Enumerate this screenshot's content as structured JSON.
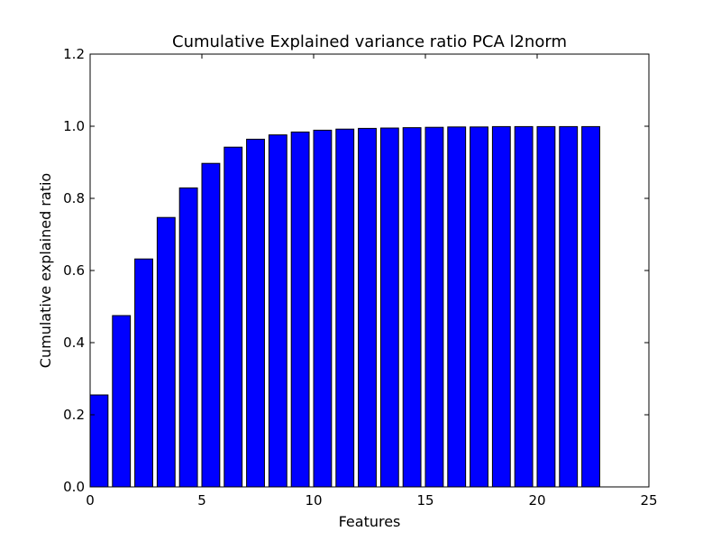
{
  "chart_data": {
    "type": "bar",
    "title": "Cumulative Explained variance ratio PCA l2norm",
    "xlabel": "Features",
    "ylabel": "Cumulative explained ratio",
    "xlim": [
      0,
      25
    ],
    "ylim": [
      0,
      1.2
    ],
    "xticks": [
      0,
      5,
      10,
      15,
      20,
      25
    ],
    "yticks": [
      0.0,
      0.2,
      0.4,
      0.6,
      0.8,
      1.0,
      1.2
    ],
    "xtick_labels": [
      "0",
      "5",
      "10",
      "15",
      "20",
      "25"
    ],
    "ytick_labels": [
      "0.0",
      "0.2",
      "0.4",
      "0.6",
      "0.8",
      "1.0",
      "1.2"
    ],
    "bar_color": "#0000ff",
    "bar_width": 0.8,
    "grid": false,
    "x": [
      0,
      1,
      2,
      3,
      4,
      5,
      6,
      7,
      8,
      9,
      10,
      11,
      12,
      13,
      14,
      15,
      16,
      17,
      18,
      19,
      20,
      21,
      22
    ],
    "values": [
      0.255,
      0.475,
      0.632,
      0.747,
      0.829,
      0.897,
      0.942,
      0.964,
      0.976,
      0.984,
      0.989,
      0.992,
      0.994,
      0.995,
      0.996,
      0.997,
      0.998,
      0.998,
      0.999,
      0.999,
      0.999,
      0.999,
      0.999
    ]
  }
}
